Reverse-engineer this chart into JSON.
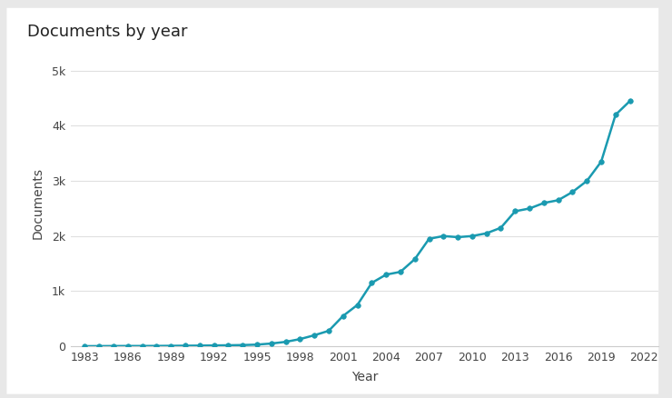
{
  "title": "Documents by year",
  "xlabel": "Year",
  "ylabel": "Documents",
  "line_color": "#1a9ab0",
  "marker_color": "#1a9ab0",
  "background_color": "#e8e8e8",
  "card_color": "#ffffff",
  "years": [
    1983,
    1984,
    1985,
    1986,
    1987,
    1988,
    1989,
    1990,
    1991,
    1992,
    1993,
    1994,
    1995,
    1996,
    1997,
    1998,
    1999,
    2000,
    2001,
    2002,
    2003,
    2004,
    2005,
    2006,
    2007,
    2008,
    2009,
    2010,
    2011,
    2012,
    2013,
    2014,
    2015,
    2016,
    2017,
    2018,
    2019,
    2020,
    2021
  ],
  "values": [
    2,
    3,
    4,
    5,
    5,
    6,
    8,
    10,
    12,
    15,
    18,
    22,
    30,
    50,
    80,
    130,
    200,
    280,
    550,
    750,
    1150,
    1300,
    1350,
    1580,
    1950,
    2000,
    1980,
    2000,
    2050,
    2150,
    2450,
    2500,
    2600,
    2650,
    2800,
    3000,
    3350,
    4200,
    4450
  ],
  "xlim": [
    1982,
    2023
  ],
  "ylim": [
    0,
    5200
  ],
  "yticks": [
    0,
    1000,
    2000,
    3000,
    4000,
    5000
  ],
  "ytick_labels": [
    "0",
    "1k",
    "2k",
    "3k",
    "4k",
    "5k"
  ],
  "xticks": [
    1983,
    1986,
    1989,
    1992,
    1995,
    1998,
    2001,
    2004,
    2007,
    2010,
    2013,
    2016,
    2019,
    2022
  ],
  "grid_color": "#e0e0e0",
  "title_fontsize": 13,
  "axis_label_fontsize": 10,
  "tick_fontsize": 9
}
